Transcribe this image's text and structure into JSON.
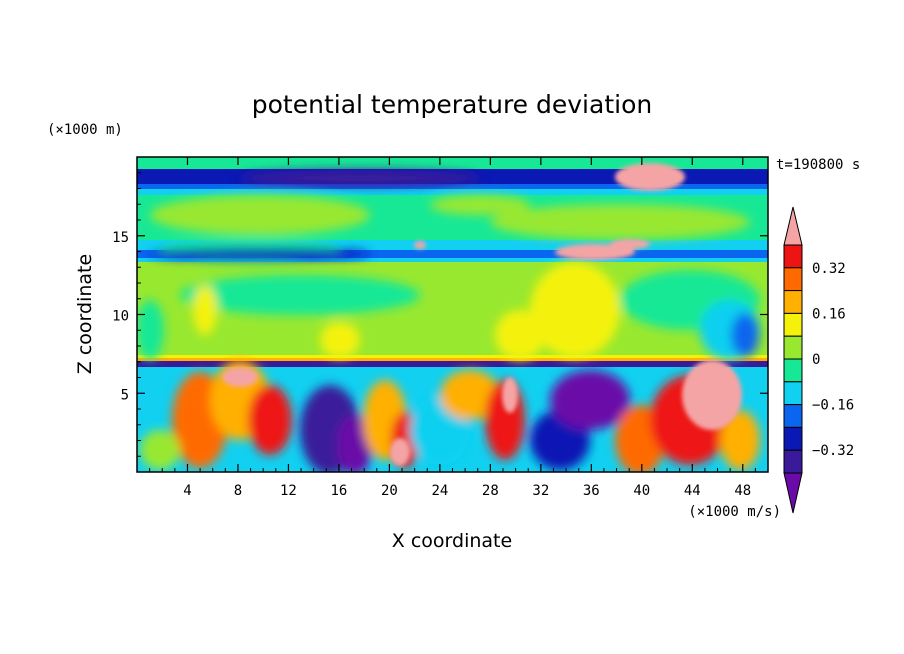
{
  "chart_data": {
    "type": "heatmap",
    "title": "potential temperature deviation",
    "xlabel": "X coordinate",
    "ylabel": "Z coordinate",
    "x_unit_label": "(×1000 m/s)",
    "y_unit_label": "(×1000 m)",
    "time_label": "t=190800 s",
    "xlim": [
      0,
      50
    ],
    "ylim": [
      0,
      20
    ],
    "x_ticks": [
      4,
      8,
      12,
      16,
      20,
      24,
      28,
      32,
      36,
      40,
      44,
      48
    ],
    "y_ticks": [
      5,
      10,
      15
    ],
    "colorbar": {
      "tick_labels": [
        "0.32",
        "0.16",
        "0",
        "−0.16",
        "−0.32"
      ],
      "tick_values": [
        0.32,
        0.16,
        0,
        -0.16,
        -0.32
      ],
      "levels": [
        -0.4,
        -0.32,
        -0.24,
        -0.16,
        -0.08,
        0,
        0.08,
        0.16,
        0.24,
        0.32,
        0.4
      ],
      "colors": [
        "#6a0aa8",
        "#3a1a9a",
        "#0a18b4",
        "#0a66ee",
        "#11d0f0",
        "#17e896",
        "#98e830",
        "#f4f20a",
        "#ffb000",
        "#ff6a00",
        "#ee1414",
        "#f4a4a4"
      ]
    },
    "bands": [
      {
        "z_range": [
          18.0,
          19.0
        ],
        "value": -0.34
      },
      {
        "z_range": [
          13.5,
          14.0
        ],
        "value": -0.24
      },
      {
        "z_range": [
          7.0,
          7.5
        ],
        "value": 0.12
      },
      {
        "z_range": [
          6.0,
          7.0
        ],
        "value": -0.36
      }
    ]
  }
}
